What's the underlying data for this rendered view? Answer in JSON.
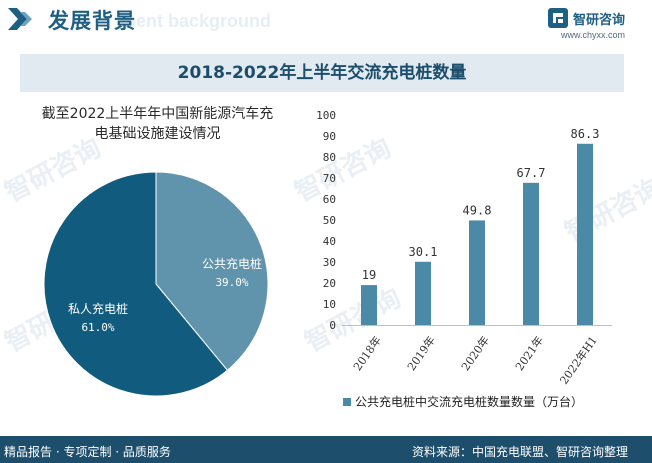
{
  "header": {
    "title": "发展背景",
    "ghost_text": "ment background"
  },
  "brand": {
    "name": "智研咨询",
    "url": "www.chyxx.com",
    "watermark_text": "智研咨询",
    "color": "#1f5f84"
  },
  "banner": {
    "title": "2018-2022年上半年交流充电桩数量"
  },
  "footer": {
    "left_text": "精品报告 · 专项定制 · 品质服务",
    "source_text": "资料来源：中国充电联盟、智研咨询整理"
  },
  "chart_data": [
    {
      "type": "pie",
      "title": "截至2022上半年年中国新能源汽车充电基础设施建设情况",
      "slices": [
        {
          "label": "公共充电桩",
          "value": 39.0,
          "display": "39.0%",
          "color": "#6094ad"
        },
        {
          "label": "私人充电桩",
          "value": 61.0,
          "display": "61.0%",
          "color": "#105b7e"
        }
      ]
    },
    {
      "type": "bar",
      "categories": [
        "2018年",
        "2019年",
        "2020年",
        "2021年",
        "2022年H1"
      ],
      "series": [
        {
          "name": "公共充电桩中交流充电桩数量数量（万台）",
          "values": [
            19,
            30.1,
            49.8,
            67.7,
            86.3
          ],
          "labels": [
            "19",
            "30.1",
            "49.8",
            "67.7",
            "86.3"
          ],
          "color": "#4b8aa6"
        }
      ],
      "ylim": [
        0,
        100
      ],
      "yticks": [
        "0",
        "10",
        "20",
        "30",
        "40",
        "50",
        "60",
        "70",
        "80",
        "90",
        "100"
      ],
      "legend_position": "bottom",
      "grid": false
    }
  ]
}
